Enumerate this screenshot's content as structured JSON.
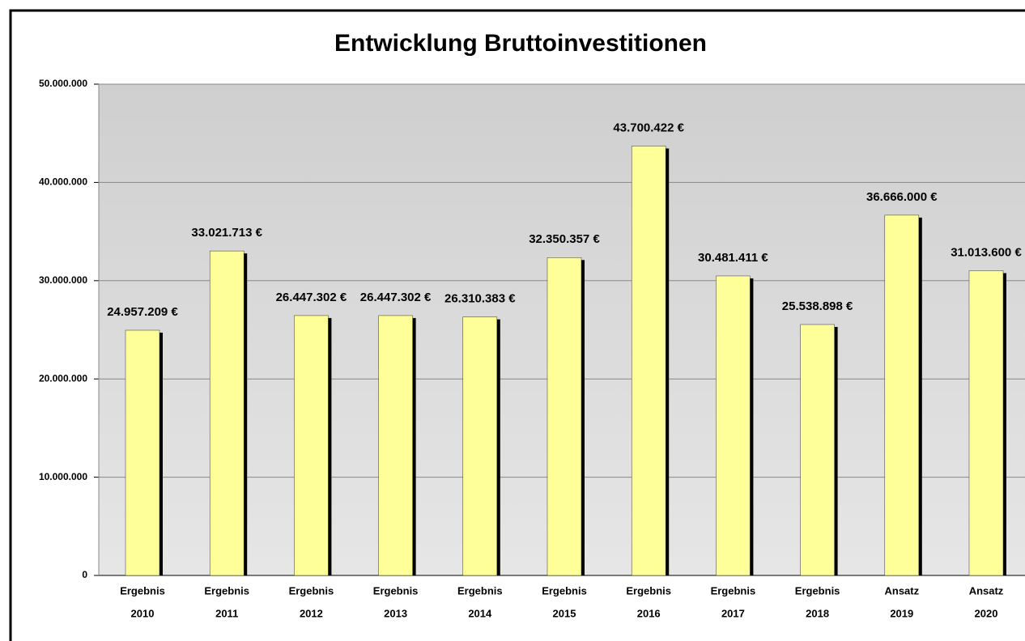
{
  "chart_data": {
    "type": "bar",
    "title": "Entwicklung Bruttoinvestitionen",
    "categories": [
      [
        "Ergebnis",
        "2010"
      ],
      [
        "Ergebnis",
        "2011"
      ],
      [
        "Ergebnis",
        "2012"
      ],
      [
        "Ergebnis",
        "2013"
      ],
      [
        "Ergebnis",
        "2014"
      ],
      [
        "Ergebnis",
        "2015"
      ],
      [
        "Ergebnis",
        "2016"
      ],
      [
        "Ergebnis",
        "2017"
      ],
      [
        "Ergebnis",
        "2018"
      ],
      [
        "Ansatz",
        "2019"
      ],
      [
        "Ansatz",
        "2020"
      ]
    ],
    "values": [
      24957209,
      33021713,
      26447302,
      26447302,
      26310383,
      32350357,
      43700422,
      30481411,
      25538898,
      36666000,
      31013600
    ],
    "value_labels": [
      "24.957.209 €",
      "33.021.713 €",
      "26.447.302 €",
      "26.447.302 €",
      "26.310.383 €",
      "32.350.357 €",
      "43.700.422 €",
      "30.481.411 €",
      "25.538.898 €",
      "36.666.000 €",
      "31.013.600 €"
    ],
    "color": "#ffff99",
    "ylim": [
      0,
      50000000
    ],
    "yticks": [
      0,
      {
        "value": 10000000,
        "label": "10.000.000"
      },
      {
        "value": 20000000,
        "label": "20.000.000"
      },
      {
        "value": 30000000,
        "label": "30.000.000"
      },
      {
        "value": 40000000,
        "label": "40.000.000"
      },
      {
        "value": 50000000,
        "label": "50.000.000"
      }
    ],
    "grid": true
  }
}
